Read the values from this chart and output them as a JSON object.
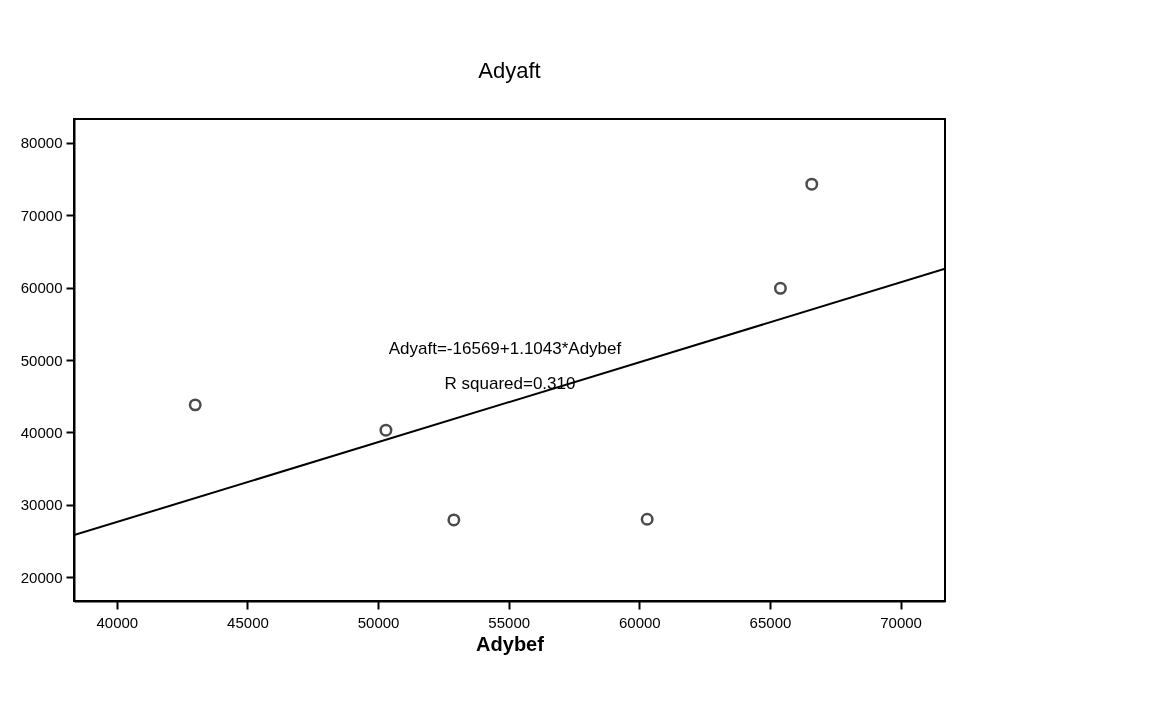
{
  "chart_data": {
    "type": "scatter",
    "title": "Adyaft",
    "xlabel": "Adybef",
    "xlim": [
      38360,
      71700
    ],
    "xticks": [
      40000,
      45000,
      50000,
      55000,
      60000,
      65000,
      70000
    ],
    "ylim": [
      16700,
      83300
    ],
    "yticks": [
      20000,
      30000,
      40000,
      50000,
      60000,
      70000,
      80000
    ],
    "grid": false,
    "series": [
      {
        "color": "#000000",
        "marker": "circle",
        "x": [
          43000,
          50300,
          52900,
          60300,
          65400,
          66600
        ],
        "values": [
          43800,
          40300,
          27900,
          28000,
          59900,
          74300
        ]
      },
      {
        "type": "line",
        "color": "#000000",
        "marker": "none",
        "x": [
          38360,
          71700
        ],
        "values": [
          25800,
          62600
        ]
      }
    ],
    "annotations": [
      "Adyaft=-16569+1.1043*Adybef",
      "R squared=0.310"
    ]
  }
}
